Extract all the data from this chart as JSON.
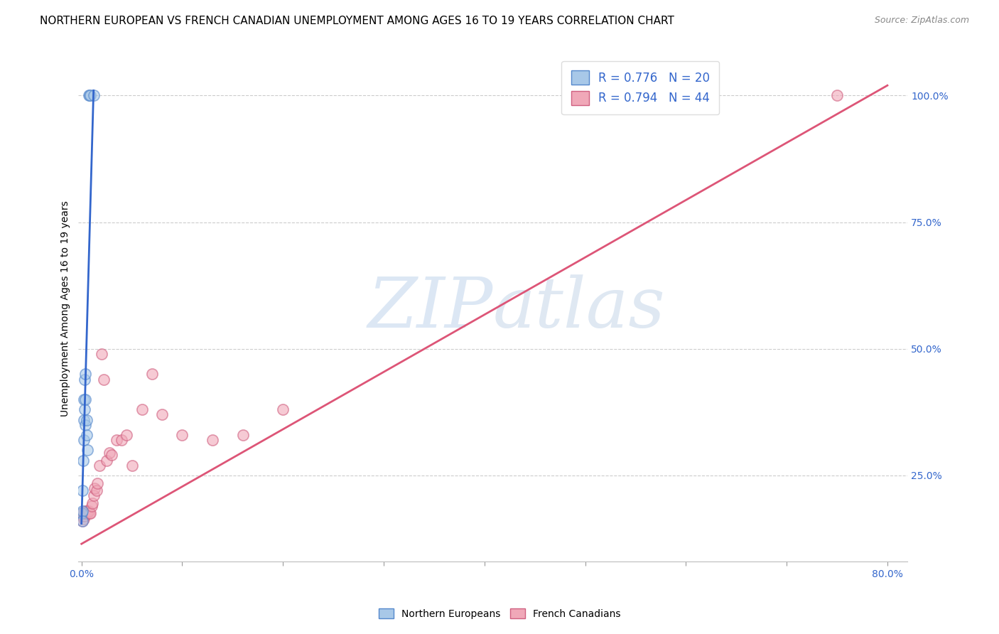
{
  "title": "NORTHERN EUROPEAN VS FRENCH CANADIAN UNEMPLOYMENT AMONG AGES 16 TO 19 YEARS CORRELATION CHART",
  "source": "Source: ZipAtlas.com",
  "ylabel": "Unemployment Among Ages 16 to 19 years",
  "blue_R": 0.776,
  "blue_N": 20,
  "pink_R": 0.794,
  "pink_N": 44,
  "blue_color": "#a8c8e8",
  "pink_color": "#f0a8b8",
  "blue_edge_color": "#5588cc",
  "pink_edge_color": "#d06080",
  "blue_line_color": "#3366cc",
  "pink_line_color": "#dd5577",
  "watermark_color": "#ccddf0",
  "background_color": "#ffffff",
  "grid_color": "#cccccc",
  "blue_scatter_x": [
    0.0005,
    0.0008,
    0.001,
    0.001,
    0.0015,
    0.002,
    0.002,
    0.0025,
    0.003,
    0.003,
    0.0035,
    0.004,
    0.004,
    0.005,
    0.005,
    0.006,
    0.007,
    0.008,
    0.009,
    0.012
  ],
  "blue_scatter_y": [
    0.175,
    0.18,
    0.16,
    0.22,
    0.28,
    0.32,
    0.36,
    0.4,
    0.44,
    0.38,
    0.35,
    0.4,
    0.45,
    0.36,
    0.33,
    0.3,
    1.0,
    1.0,
    1.0,
    1.0
  ],
  "pink_scatter_x": [
    0.0003,
    0.0005,
    0.0008,
    0.001,
    0.0012,
    0.0015,
    0.002,
    0.002,
    0.0025,
    0.003,
    0.003,
    0.0035,
    0.004,
    0.004,
    0.005,
    0.005,
    0.006,
    0.007,
    0.008,
    0.009,
    0.01,
    0.011,
    0.012,
    0.013,
    0.015,
    0.016,
    0.018,
    0.02,
    0.022,
    0.025,
    0.028,
    0.03,
    0.035,
    0.04,
    0.045,
    0.05,
    0.06,
    0.07,
    0.08,
    0.1,
    0.13,
    0.16,
    0.2,
    0.75
  ],
  "pink_scatter_y": [
    0.175,
    0.17,
    0.175,
    0.16,
    0.175,
    0.17,
    0.165,
    0.175,
    0.175,
    0.17,
    0.175,
    0.18,
    0.175,
    0.175,
    0.18,
    0.175,
    0.175,
    0.18,
    0.175,
    0.175,
    0.19,
    0.195,
    0.21,
    0.225,
    0.22,
    0.235,
    0.27,
    0.49,
    0.44,
    0.28,
    0.295,
    0.29,
    0.32,
    0.32,
    0.33,
    0.27,
    0.38,
    0.45,
    0.37,
    0.33,
    0.32,
    0.33,
    0.38,
    1.0
  ],
  "blue_regline_x": [
    0.0,
    0.012
  ],
  "blue_regline_y": [
    0.155,
    1.01
  ],
  "pink_regline_x": [
    0.0,
    0.8
  ],
  "pink_regline_y": [
    0.115,
    1.02
  ],
  "xlim": [
    -0.003,
    0.82
  ],
  "ylim": [
    0.08,
    1.08
  ],
  "x_ticks": [
    0.0,
    0.1,
    0.2,
    0.3,
    0.4,
    0.5,
    0.6,
    0.7,
    0.8
  ],
  "y_ticks_right": [
    0.25,
    0.5,
    0.75,
    1.0
  ],
  "y_tick_labels_right": [
    "25.0%",
    "50.0%",
    "75.0%",
    "100.0%"
  ],
  "title_fontsize": 11,
  "tick_fontsize": 10,
  "legend_fontsize": 12,
  "scatter_size": 120,
  "scatter_alpha": 0.6
}
